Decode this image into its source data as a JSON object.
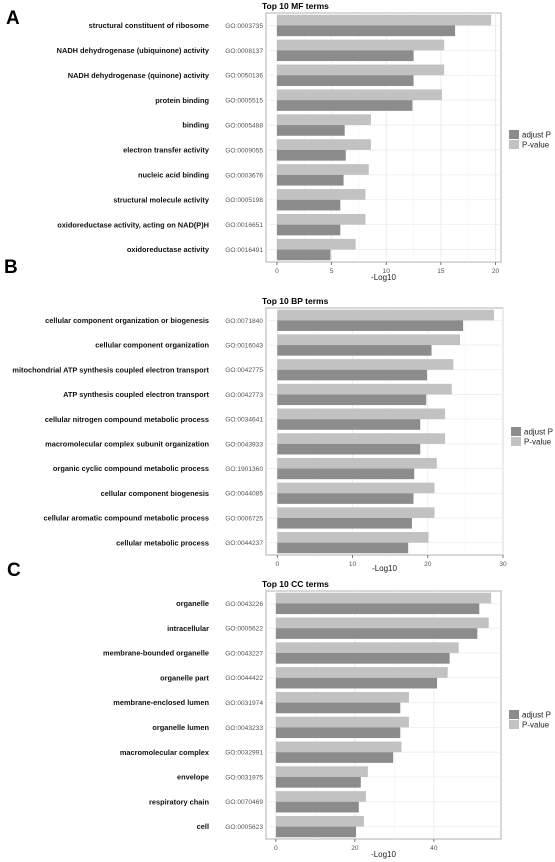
{
  "chart_data": [
    {
      "type": "bar",
      "panel": "A",
      "title": "Top 10 MF terms",
      "xlabel": "-Log10",
      "xlim": [
        -1,
        20.5
      ],
      "xticks": [
        0,
        5,
        10,
        15,
        20
      ],
      "categories": [
        "structural constituent of ribosome",
        "NADH dehydrogenase (ubiquinone) activity",
        "NADH dehydrogenase (quinone) activity",
        "protein binding",
        "binding",
        "electron transfer activity",
        "nucleic acid binding",
        "structural molecule activity",
        "oxidoreductase activity, acting on NAD(P)H",
        "oxidoreductase activity"
      ],
      "go_ids": [
        "GO:0003735",
        "GO:0008137",
        "GO:0050136",
        "GO:0005515",
        "GO:0005488",
        "GO:0009055",
        "GO:0003676",
        "GO:0005198",
        "GO:0016651",
        "GO:0016491"
      ],
      "series": [
        {
          "name": "adjust P",
          "color": "#8c8c8c",
          "values": [
            16.3,
            12.5,
            12.5,
            12.4,
            6.2,
            6.3,
            6.1,
            5.8,
            5.8,
            4.9
          ]
        },
        {
          "name": "P-value",
          "color": "#c2c2c2",
          "values": [
            19.6,
            15.3,
            15.3,
            15.1,
            8.6,
            8.6,
            8.4,
            8.1,
            8.1,
            7.2
          ]
        }
      ],
      "legend": "right",
      "grid": true
    },
    {
      "type": "bar",
      "panel": "B",
      "title": "Top 10 BP terms",
      "xlabel": "-Log10",
      "xlim": [
        -1.5,
        30
      ],
      "xticks": [
        0,
        10,
        20,
        30
      ],
      "categories": [
        "cellular component organization or biogenesis",
        "cellular component organization",
        "mitochondrial ATP synthesis coupled electron transport",
        "ATP synthesis coupled electron transport",
        "cellular nitrogen compound metabolic process",
        "macromolecular complex subunit organization",
        "organic cyclic compound metabolic process",
        "cellular component biogenesis",
        "cellular aromatic compound metabolic process",
        "cellular metabolic process"
      ],
      "go_ids": [
        "GO:0071840",
        "GO:0016043",
        "GO:0042775",
        "GO:0042773",
        "GO:0034641",
        "GO:0043933",
        "GO:1901360",
        "GO:0044085",
        "GO:0006725",
        "GO:0044237"
      ],
      "series": [
        {
          "name": "adjust P",
          "color": "#8c8c8c",
          "values": [
            24.7,
            20.5,
            19.9,
            19.8,
            19.0,
            19.0,
            18.2,
            18.1,
            17.9,
            17.4
          ]
        },
        {
          "name": "P-value",
          "color": "#c2c2c2",
          "values": [
            28.8,
            24.3,
            23.4,
            23.2,
            22.3,
            22.3,
            21.2,
            20.9,
            20.9,
            20.1
          ]
        }
      ],
      "legend": "right",
      "grid": true
    },
    {
      "type": "bar",
      "panel": "C",
      "title": "Top 10 CC terms",
      "xlabel": "-Log10",
      "xlim": [
        -2.5,
        57
      ],
      "xticks": [
        0,
        20,
        40
      ],
      "categories": [
        "organelle",
        "intracellular",
        "membrane-bounded organelle",
        "organelle part",
        "membrane-enclosed lumen",
        "organelle lumen",
        "macromolecular complex",
        "envelope",
        "respiratory chain",
        "cell"
      ],
      "go_ids": [
        "GO:0043226",
        "GO:0005622",
        "GO:0043227",
        "GO:0044422",
        "GO:0031974",
        "GO:0043233",
        "GO:0032991",
        "GO:0031975",
        "GO:0070469",
        "GO:0005623"
      ],
      "series": [
        {
          "name": "adjust P",
          "color": "#8c8c8c",
          "values": [
            51.5,
            51.0,
            44.0,
            40.8,
            31.5,
            31.5,
            29.7,
            21.5,
            21.0,
            20.3
          ]
        },
        {
          "name": "P-value",
          "color": "#c2c2c2",
          "values": [
            54.5,
            53.9,
            46.3,
            43.5,
            33.7,
            33.7,
            31.8,
            23.3,
            22.8,
            22.3
          ]
        }
      ],
      "legend": "right",
      "grid": true
    }
  ]
}
